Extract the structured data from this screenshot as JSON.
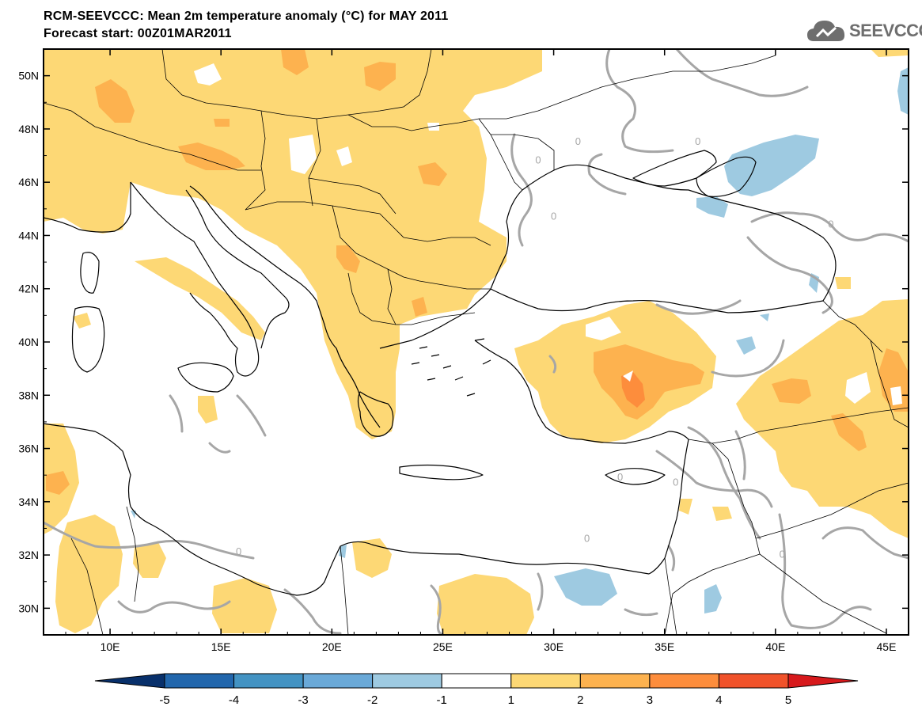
{
  "header": {
    "title": "RCM-SEEVCCC: Mean 2m temperature anomaly (°C) for MAY 2011",
    "subtitle": "Forecast start: 00Z01MAR2011",
    "logo_text": "SEEVCCC"
  },
  "map": {
    "lon_range": [
      7,
      46
    ],
    "lat_range": [
      29,
      51
    ],
    "lon_ticks": [
      10,
      15,
      20,
      25,
      30,
      35,
      40,
      45
    ],
    "lon_labels": [
      "10E",
      "15E",
      "20E",
      "25E",
      "30E",
      "35E",
      "40E",
      "45E"
    ],
    "lat_ticks": [
      30,
      32,
      34,
      36,
      38,
      40,
      42,
      44,
      46,
      48,
      50
    ],
    "lat_labels": [
      "30N",
      "32N",
      "34N",
      "36N",
      "38N",
      "40N",
      "42N",
      "44N",
      "46N",
      "48N",
      "50N"
    ],
    "contour_label": "0",
    "contour_label_positions": [
      [
        31.1,
        47.4
      ],
      [
        36.5,
        47.4
      ],
      [
        42.5,
        44.3
      ],
      [
        31.5,
        32.5
      ],
      [
        15.8,
        32.0
      ],
      [
        40.3,
        31.9
      ],
      [
        33.0,
        34.8
      ],
      [
        35.5,
        34.6
      ],
      [
        30.0,
        44.6
      ],
      [
        29.3,
        46.7
      ]
    ]
  },
  "colorbar": {
    "labels": [
      "-5",
      "-4",
      "-3",
      "-2",
      "-1",
      "1",
      "2",
      "3",
      "4",
      "5"
    ],
    "colors": [
      "#2166ac",
      "#4393c3",
      "#6aa9d8",
      "#9ecae1",
      "#ffffff",
      "#fdd875",
      "#fdb24f",
      "#fd8d3c",
      "#f0522a"
    ],
    "low_color": "#08306b",
    "high_color": "#d7191c"
  }
}
